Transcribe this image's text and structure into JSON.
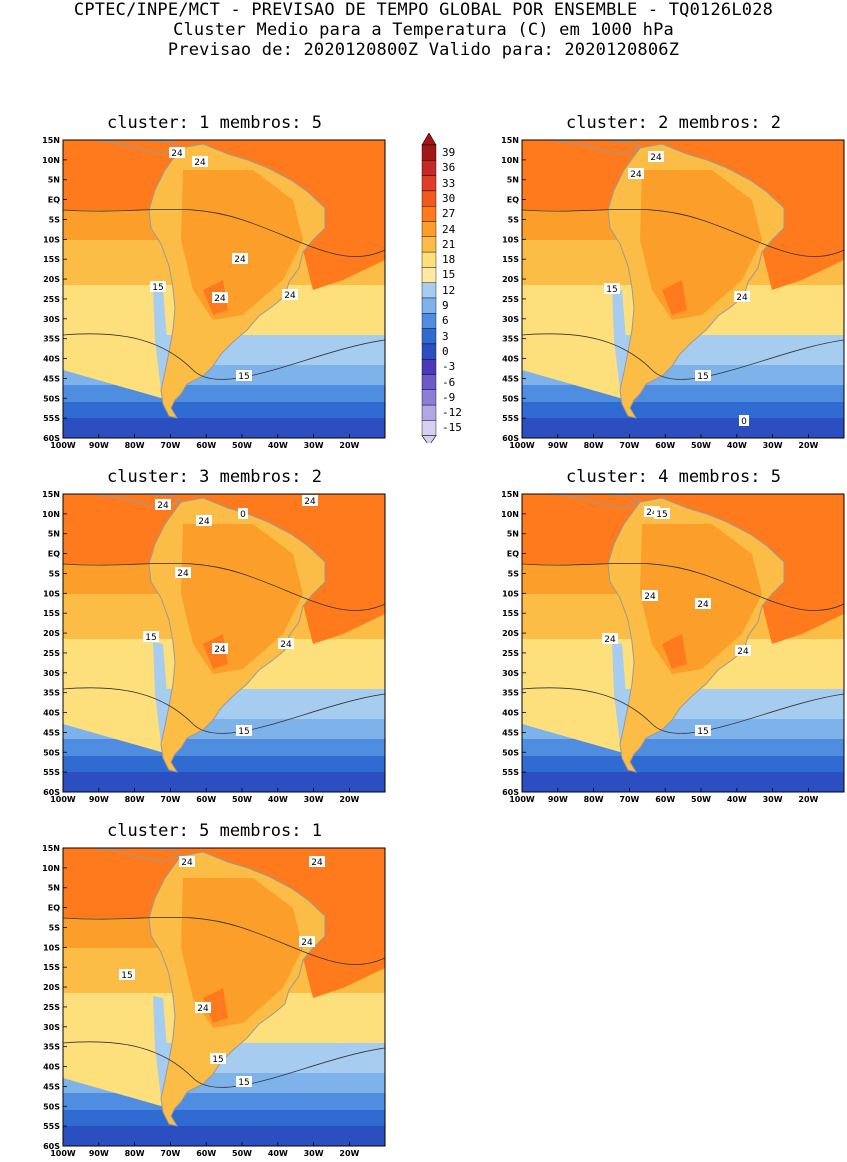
{
  "header": {
    "line1": "CPTEC/INPE/MCT - PREVISAO DE TEMPO GLOBAL POR ENSEMBLE - TQ0126L028",
    "line2": "Cluster Medio para a Temperatura (C) em 1000 hPa",
    "line3": "Previsao de: 2020120800Z   Valido para: 2020120806Z"
  },
  "axes": {
    "lat_ticks": [
      "15N",
      "10N",
      "5N",
      "EQ",
      "5S",
      "10S",
      "15S",
      "20S",
      "25S",
      "30S",
      "35S",
      "40S",
      "45S",
      "50S",
      "55S",
      "60S"
    ],
    "lon_ticks": [
      "100W",
      "90W",
      "80W",
      "70W",
      "60W",
      "50W",
      "40W",
      "30W",
      "20W"
    ]
  },
  "colorbar": {
    "labels": [
      "39",
      "36",
      "33",
      "30",
      "27",
      "24",
      "21",
      "18",
      "15",
      "12",
      "9",
      "6",
      "3",
      "0",
      "-3",
      "-6",
      "-9",
      "-12",
      "-15"
    ],
    "colors": [
      "#a01818",
      "#c62828",
      "#e03c2a",
      "#f05a1e",
      "#ff7a1c",
      "#fb9f2a",
      "#fbbd45",
      "#fde07c",
      "#ffe9a0",
      "#a6ccef",
      "#7db2ea",
      "#4f8de0",
      "#2f6bd0",
      "#2b4fc0",
      "#4a3ab8",
      "#6b5ac8",
      "#8c7ed6",
      "#b2a6e4",
      "#d6cff0"
    ]
  },
  "panels": [
    {
      "title": "cluster: 1   membros: 5",
      "contour_labels": [
        "24",
        "24",
        "24",
        "24",
        "24",
        "15",
        "15"
      ]
    },
    {
      "title": "cluster: 2   membros: 2",
      "contour_labels": [
        "24",
        "24",
        "24",
        "15",
        "15",
        "0"
      ]
    },
    {
      "title": "cluster: 3   membros: 2",
      "contour_labels": [
        "24",
        "24",
        "24",
        "24",
        "24",
        "24",
        "15",
        "15",
        "0"
      ]
    },
    {
      "title": "cluster: 4   membros: 5",
      "contour_labels": [
        "24",
        "24",
        "24",
        "24",
        "24",
        "15",
        "15"
      ]
    },
    {
      "title": "cluster: 5   membros: 1",
      "contour_labels": [
        "24",
        "24",
        "24",
        "24",
        "15",
        "15",
        "15"
      ]
    }
  ]
}
